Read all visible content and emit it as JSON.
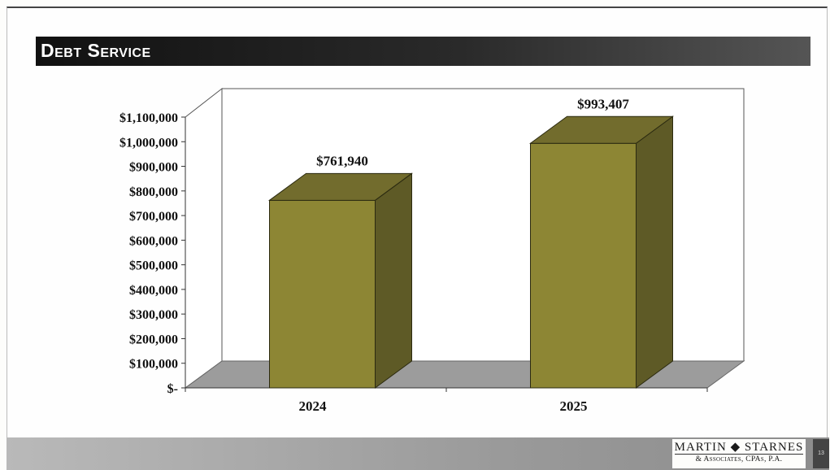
{
  "slide": {
    "title": "Debt Service",
    "footer_logo_main": "MARTIN ◆ STARNES",
    "footer_logo_sub": "& Associates, CPAs, P.A.",
    "page_number": "13"
  },
  "colors": {
    "bar_front": "#8d8634",
    "bar_side": "#5e5a26",
    "bar_top": "#726c2d",
    "floor": "#9c9c9c",
    "title_bar": "#1a1a1a"
  },
  "chart_data": {
    "type": "bar",
    "style": "3d",
    "categories": [
      "2024",
      "2025"
    ],
    "values": [
      761940,
      993407
    ],
    "data_labels": [
      "$761,940",
      "$993,407"
    ],
    "title": "",
    "xlabel": "",
    "ylabel": "",
    "ylim": [
      0,
      1100000
    ],
    "yticks": [
      0,
      100000,
      200000,
      300000,
      400000,
      500000,
      600000,
      700000,
      800000,
      900000,
      1000000,
      1100000
    ],
    "ytick_labels": [
      "$-",
      "$100,000",
      "$200,000",
      "$300,000",
      "$400,000",
      "$500,000",
      "$600,000",
      "$700,000",
      "$800,000",
      "$900,000",
      "$1,000,000",
      "$1,100,000"
    ],
    "grid": false,
    "legend": "none"
  }
}
